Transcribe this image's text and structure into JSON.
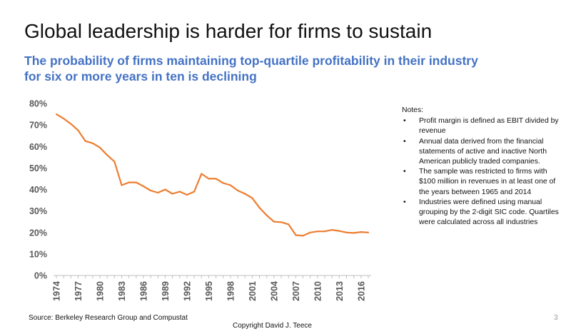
{
  "slide": {
    "title": "Global leadership is harder for firms to sustain",
    "source": "Source: Berkeley Research Group and Compustat",
    "copyright": "Copyright David J. Teece",
    "page_number": "3"
  },
  "notes": {
    "heading": "Notes:",
    "items": [
      "Profit margin is defined as EBIT divided by revenue",
      "Annual data derived from the financial statements of active and inactive North American publicly traded companies.",
      "The sample was restricted to firms with $100 million in revenues in at least one of the years between 1965 and 2014",
      "Industries were defined using manual grouping by the 2-digit SIC code. Quartiles were calculated across all industries"
    ]
  },
  "colors": {
    "line": "#ed7d31",
    "subtitle": "#4472c4",
    "axis": "#bfbfbf",
    "tick_text": "#595959"
  },
  "chart_data": {
    "type": "line",
    "title": "The probability of firms maintaining top-quartile profitability in their industry for six or more years in ten is declining",
    "xlabel": "",
    "ylabel": "",
    "x": [
      1974,
      1975,
      1976,
      1977,
      1978,
      1979,
      1980,
      1981,
      1982,
      1983,
      1984,
      1985,
      1986,
      1987,
      1988,
      1989,
      1990,
      1991,
      1992,
      1993,
      1994,
      1995,
      1996,
      1997,
      1998,
      1999,
      2000,
      2001,
      2002,
      2003,
      2004,
      2005,
      2006,
      2007,
      2008,
      2009,
      2010,
      2011,
      2012,
      2013,
      2014,
      2015,
      2016,
      2017
    ],
    "values": [
      75,
      73,
      70.5,
      67.5,
      62.5,
      61.5,
      59.5,
      56,
      53,
      42,
      43.3,
      43.3,
      41.5,
      39.5,
      38.5,
      40,
      38,
      39,
      37.5,
      39,
      47.3,
      45,
      45,
      43,
      42,
      39.5,
      38,
      36,
      31.5,
      28,
      25,
      24.8,
      23.8,
      18.8,
      18.5,
      20,
      20.5,
      20.5,
      21.2,
      20.7,
      20,
      19.8,
      20.2,
      20
    ],
    "ylim": [
      0,
      80
    ],
    "ytick_labels": [
      "0%",
      "10%",
      "20%",
      "30%",
      "40%",
      "50%",
      "60%",
      "70%",
      "80%"
    ],
    "xtick_labels": [
      "1974",
      "1977",
      "1980",
      "1983",
      "1986",
      "1989",
      "1992",
      "1995",
      "1998",
      "2001",
      "2004",
      "2007",
      "2010",
      "2013",
      "2016"
    ],
    "grid": false,
    "legend": "none"
  }
}
